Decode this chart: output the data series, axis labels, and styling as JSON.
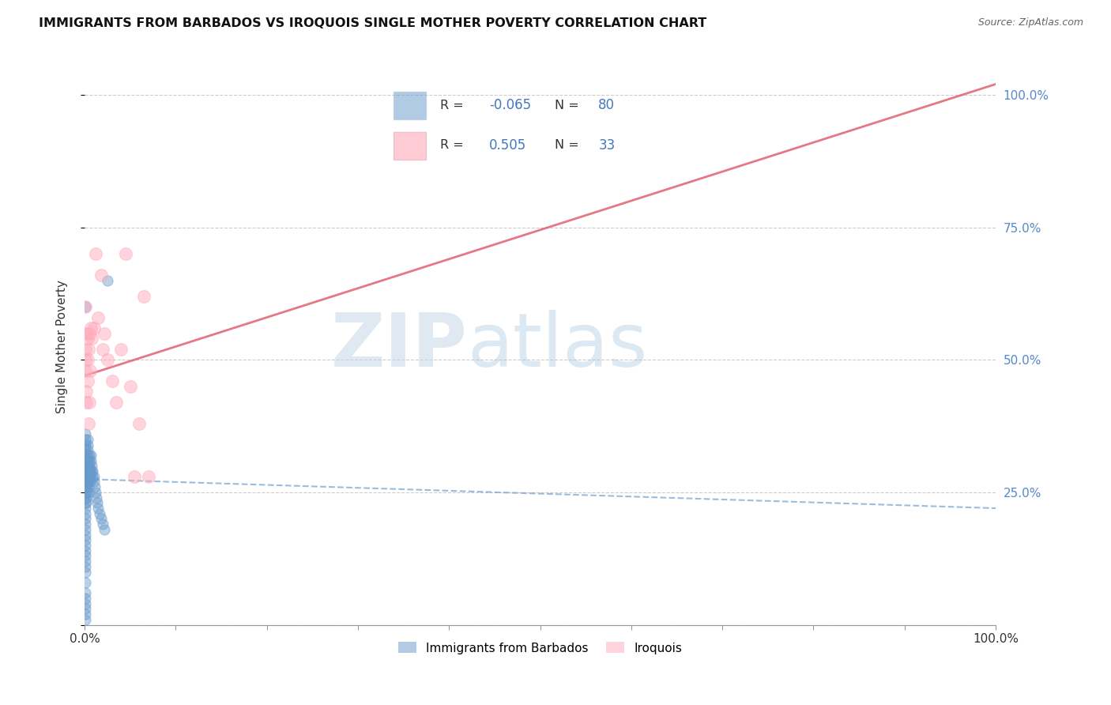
{
  "title": "IMMIGRANTS FROM BARBADOS VS IROQUOIS SINGLE MOTHER POVERTY CORRELATION CHART",
  "source": "Source: ZipAtlas.com",
  "ylabel": "Single Mother Poverty",
  "xlim": [
    0,
    1.0
  ],
  "ylim": [
    0.0,
    1.05
  ],
  "grid_color": "#cccccc",
  "grid_linestyle": "--",
  "background_color": "#ffffff",
  "blue_color": "#6699cc",
  "pink_color": "#ffaabb",
  "blue_R": -0.065,
  "blue_N": 80,
  "pink_R": 0.505,
  "pink_N": 33,
  "legend_label_blue": "Immigrants from Barbados",
  "legend_label_pink": "Iroquois",
  "watermark_zip": "ZIP",
  "watermark_atlas": "atlas",
  "blue_line_x": [
    0.0,
    1.0
  ],
  "blue_line_y": [
    0.275,
    0.22
  ],
  "pink_line_x": [
    0.0,
    1.0
  ],
  "pink_line_y": [
    0.47,
    1.02
  ],
  "blue_points_x": [
    0.001,
    0.001,
    0.001,
    0.001,
    0.001,
    0.001,
    0.001,
    0.001,
    0.001,
    0.001,
    0.001,
    0.001,
    0.001,
    0.001,
    0.001,
    0.001,
    0.001,
    0.001,
    0.001,
    0.001,
    0.001,
    0.001,
    0.001,
    0.001,
    0.001,
    0.001,
    0.001,
    0.002,
    0.002,
    0.002,
    0.002,
    0.002,
    0.002,
    0.002,
    0.002,
    0.003,
    0.003,
    0.003,
    0.003,
    0.003,
    0.003,
    0.003,
    0.004,
    0.004,
    0.004,
    0.004,
    0.005,
    0.005,
    0.005,
    0.005,
    0.006,
    0.006,
    0.006,
    0.007,
    0.007,
    0.008,
    0.008,
    0.009,
    0.009,
    0.01,
    0.01,
    0.011,
    0.012,
    0.013,
    0.014,
    0.015,
    0.016,
    0.018,
    0.02,
    0.022,
    0.025,
    0.001,
    0.001,
    0.001,
    0.001,
    0.001,
    0.001,
    0.001,
    0.001,
    0.001
  ],
  "blue_points_y": [
    0.3,
    0.28,
    0.32,
    0.33,
    0.35,
    0.31,
    0.29,
    0.34,
    0.36,
    0.28,
    0.27,
    0.26,
    0.24,
    0.23,
    0.25,
    0.22,
    0.21,
    0.2,
    0.19,
    0.18,
    0.17,
    0.16,
    0.15,
    0.14,
    0.13,
    0.12,
    0.11,
    0.3,
    0.29,
    0.28,
    0.27,
    0.26,
    0.25,
    0.24,
    0.23,
    0.35,
    0.34,
    0.33,
    0.32,
    0.31,
    0.3,
    0.29,
    0.28,
    0.27,
    0.26,
    0.25,
    0.32,
    0.31,
    0.3,
    0.29,
    0.29,
    0.28,
    0.27,
    0.32,
    0.31,
    0.3,
    0.29,
    0.29,
    0.28,
    0.28,
    0.27,
    0.26,
    0.25,
    0.24,
    0.23,
    0.22,
    0.21,
    0.2,
    0.19,
    0.18,
    0.65,
    0.1,
    0.08,
    0.06,
    0.05,
    0.04,
    0.03,
    0.02,
    0.01,
    0.6
  ],
  "pink_points_x": [
    0.001,
    0.001,
    0.001,
    0.002,
    0.002,
    0.001,
    0.002,
    0.003,
    0.003,
    0.003,
    0.004,
    0.004,
    0.005,
    0.005,
    0.006,
    0.007,
    0.008,
    0.01,
    0.012,
    0.015,
    0.018,
    0.02,
    0.022,
    0.025,
    0.03,
    0.035,
    0.04,
    0.045,
    0.05,
    0.055,
    0.06,
    0.065,
    0.07
  ],
  "pink_points_y": [
    0.5,
    0.52,
    0.48,
    0.55,
    0.44,
    0.6,
    0.42,
    0.54,
    0.5,
    0.46,
    0.38,
    0.52,
    0.42,
    0.55,
    0.48,
    0.56,
    0.54,
    0.56,
    0.7,
    0.58,
    0.66,
    0.52,
    0.55,
    0.5,
    0.46,
    0.42,
    0.52,
    0.7,
    0.45,
    0.28,
    0.38,
    0.62,
    0.28
  ]
}
